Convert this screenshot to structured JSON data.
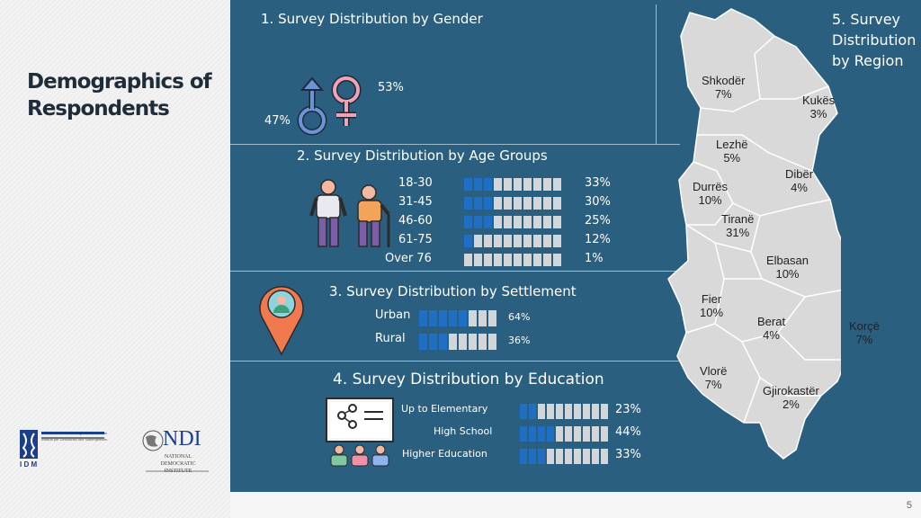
{
  "page": {
    "title": "Demographics of Respondents",
    "number": "5"
  },
  "gender": {
    "title": "1. Survey Distribution by Gender",
    "female_pct": "53%",
    "male_pct": "47%"
  },
  "age": {
    "title": "2. Survey Distribution by Age Groups",
    "groups": [
      {
        "label": "18-30",
        "pct": "33%",
        "value": 0.33
      },
      {
        "label": "31-45",
        "pct": "30%",
        "value": 0.3
      },
      {
        "label": "46-60",
        "pct": "25%",
        "value": 0.25
      },
      {
        "label": "61-75",
        "pct": "12%",
        "value": 0.12
      },
      {
        "label": "Over 76",
        "pct": "1%",
        "value": 0.01
      }
    ]
  },
  "settlement": {
    "title": "3. Survey Distribution by Settlement",
    "rows": [
      {
        "label": "Urban",
        "pct": "64%",
        "value": 0.64
      },
      {
        "label": "Rural",
        "pct": "36%",
        "value": 0.36
      }
    ]
  },
  "education": {
    "title": "4. Survey Distribution by Education",
    "rows": [
      {
        "label": "Up to Elementary",
        "pct": "23%",
        "value": 0.23
      },
      {
        "label": "High School",
        "pct": "44%",
        "value": 0.44
      },
      {
        "label": "Higher Education",
        "pct": "33%",
        "value": 0.33
      }
    ]
  },
  "region": {
    "title": "5. Survey Distribution by Region",
    "regions": [
      {
        "name": "Shkodër",
        "pct": "7%"
      },
      {
        "name": "Kukës",
        "pct": "3%"
      },
      {
        "name": "Lezhë",
        "pct": "5%"
      },
      {
        "name": "Dibër",
        "pct": "4%"
      },
      {
        "name": "Durrës",
        "pct": "10%"
      },
      {
        "name": "Tiranë",
        "pct": "31%"
      },
      {
        "name": "Elbasan",
        "pct": "10%"
      },
      {
        "name": "Fier",
        "pct": "10%"
      },
      {
        "name": "Berat",
        "pct": "4%"
      },
      {
        "name": "Korçë",
        "pct": "7%"
      },
      {
        "name": "Vlorë",
        "pct": "7%"
      },
      {
        "name": "Gjirokastër",
        "pct": "2%"
      }
    ]
  },
  "logos": {
    "idm": {
      "name": "Institute for Democracy and Mediation",
      "subtitle": "Instituti për Demokraci dhe Ndërmjetësim",
      "abbr": "I D M"
    },
    "ndi": {
      "abbr": "NDI",
      "name": "NATIONAL DEMOCRATIC INSTITUTE"
    }
  },
  "colors": {
    "panel": "#2b5f80",
    "bar_on": "#1f6fc5",
    "bar_off": "#d3d6d9",
    "map": "#d9d9d9"
  }
}
